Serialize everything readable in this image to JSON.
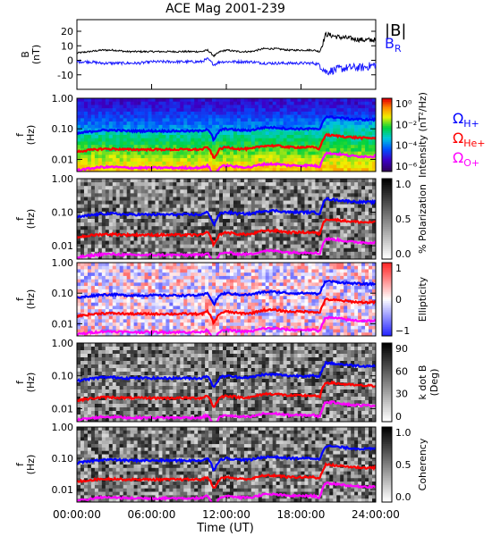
{
  "title": "ACE Mag 2001-239",
  "legend_top": {
    "b_total": "|B|",
    "b_r": "B",
    "b_r_sub": "R"
  },
  "colors": {
    "b_total": "#000000",
    "b_r": "#1a1aff",
    "h_plus": "#0000ff",
    "he_plus": "#ff0000",
    "o_plus": "#ff00ff"
  },
  "gyro_legend": [
    {
      "symbol": "Ω",
      "sub": "H+",
      "color": "#0000ff"
    },
    {
      "symbol": "Ω",
      "sub": "He+",
      "color": "#ff0000"
    },
    {
      "symbol": "Ω",
      "sub": "O+",
      "color": "#ff00ff"
    }
  ],
  "xaxis": {
    "label": "Time (UT)",
    "ticks": [
      "00:00:00",
      "06:00:00",
      "12:00:00",
      "18:00:00",
      "24:00:00"
    ]
  },
  "chart_data": [
    {
      "type": "line",
      "panel": "field",
      "ylabel": "B",
      "ylabel_unit": "(nT)",
      "ylim": [
        -20,
        28
      ],
      "yticks": [
        "20",
        "10",
        "0",
        "-10"
      ],
      "x_hours": [
        0,
        1,
        2,
        3,
        4,
        5,
        6,
        7,
        8,
        9,
        10,
        10.5,
        11,
        11.5,
        12,
        13,
        14,
        15,
        16,
        17,
        18,
        19,
        19.5,
        20,
        21,
        22,
        23,
        24
      ],
      "series": [
        {
          "name": "|B|",
          "color": "#000000",
          "values": [
            5,
            6,
            7,
            7,
            6,
            6,
            6,
            6,
            6,
            6,
            6,
            7,
            3,
            6,
            7,
            6,
            6,
            8,
            8,
            7,
            7,
            7,
            6,
            18,
            16,
            15,
            14,
            14
          ]
        },
        {
          "name": "B_R",
          "color": "#1a1aff",
          "values": [
            -1,
            -1,
            -2,
            -2,
            -2,
            -2,
            -1,
            -1,
            -1,
            -1,
            -1,
            1,
            -3,
            -1,
            -1,
            -1,
            -1,
            -2,
            -2,
            -2,
            -2,
            -2,
            -3,
            -8,
            -6,
            -5,
            -5,
            -3
          ]
        }
      ]
    },
    {
      "type": "heatmap",
      "panel": "power",
      "ylabel": "f",
      "ylabel_unit": "(Hz)",
      "ylim": [
        0.004,
        1.0
      ],
      "scale": "log",
      "yticks": [
        "1.00",
        "0.10",
        "0.01"
      ],
      "colorbar_label": "Intensity (nT²/Hz)",
      "colorbar_ticks": [
        "10⁰",
        "10⁻²",
        "10⁻⁴",
        "10⁻⁶"
      ],
      "colormap": "rainbow"
    },
    {
      "type": "heatmap",
      "panel": "polarization",
      "ylabel": "f",
      "ylabel_unit": "(Hz)",
      "ylim": [
        0.004,
        1.0
      ],
      "scale": "log",
      "yticks": [
        "1.00",
        "0.10",
        "0.01"
      ],
      "colorbar_label": "% Polarization",
      "colorbar_ticks": [
        "1.0",
        "0.5",
        "0.0"
      ],
      "colormap": "gray"
    },
    {
      "type": "heatmap",
      "panel": "ellipticity",
      "ylabel": "f",
      "ylabel_unit": "(Hz)",
      "ylim": [
        0.004,
        1.0
      ],
      "scale": "log",
      "yticks": [
        "1.00",
        "0.10",
        "0.01"
      ],
      "colorbar_label": "Ellipticity",
      "colorbar_ticks": [
        "1",
        "0",
        "−1"
      ],
      "colormap": "bluewhitered"
    },
    {
      "type": "heatmap",
      "panel": "kdotb",
      "ylabel": "f",
      "ylabel_unit": "(Hz)",
      "ylim": [
        0.004,
        1.0
      ],
      "scale": "log",
      "yticks": [
        "1.00",
        "0.10",
        "0.01"
      ],
      "colorbar_label": "k dot B",
      "colorbar_unit": "(Deg)",
      "colorbar_ticks": [
        "90",
        "60",
        "30",
        "0"
      ],
      "colormap": "gray"
    },
    {
      "type": "heatmap",
      "panel": "coherency",
      "ylabel": "f",
      "ylabel_unit": "(Hz)",
      "ylim": [
        0.004,
        1.0
      ],
      "scale": "log",
      "yticks": [
        "1.00",
        "0.10",
        "0.01"
      ],
      "colorbar_label": "Coherency",
      "colorbar_ticks": [
        "1.0",
        "0.5",
        "0.0"
      ],
      "colormap": "gray"
    }
  ],
  "gyrofrequencies": {
    "x_hours": [
      0,
      1,
      2,
      3,
      4,
      5,
      6,
      7,
      8,
      9,
      10,
      10.5,
      11,
      11.5,
      12,
      13,
      14,
      15,
      16,
      17,
      18,
      19,
      19.5,
      20,
      21,
      22,
      23,
      24
    ],
    "H+": [
      0.07,
      0.08,
      0.09,
      0.09,
      0.085,
      0.085,
      0.085,
      0.085,
      0.085,
      0.085,
      0.085,
      0.1,
      0.04,
      0.09,
      0.1,
      0.09,
      0.09,
      0.11,
      0.11,
      0.1,
      0.1,
      0.1,
      0.09,
      0.25,
      0.23,
      0.21,
      0.2,
      0.2
    ],
    "He+": [
      0.018,
      0.02,
      0.022,
      0.022,
      0.021,
      0.021,
      0.021,
      0.021,
      0.021,
      0.021,
      0.021,
      0.025,
      0.01,
      0.022,
      0.025,
      0.022,
      0.022,
      0.028,
      0.028,
      0.025,
      0.025,
      0.025,
      0.022,
      0.063,
      0.058,
      0.053,
      0.05,
      0.05
    ],
    "O+": [
      0.0045,
      0.005,
      0.0056,
      0.0056,
      0.0053,
      0.0053,
      0.0053,
      0.0053,
      0.0053,
      0.0053,
      0.0053,
      0.0063,
      0.0025,
      0.0056,
      0.0063,
      0.0056,
      0.0056,
      0.007,
      0.007,
      0.0063,
      0.0063,
      0.0063,
      0.0056,
      0.016,
      0.015,
      0.013,
      0.0125,
      0.0125
    ]
  }
}
